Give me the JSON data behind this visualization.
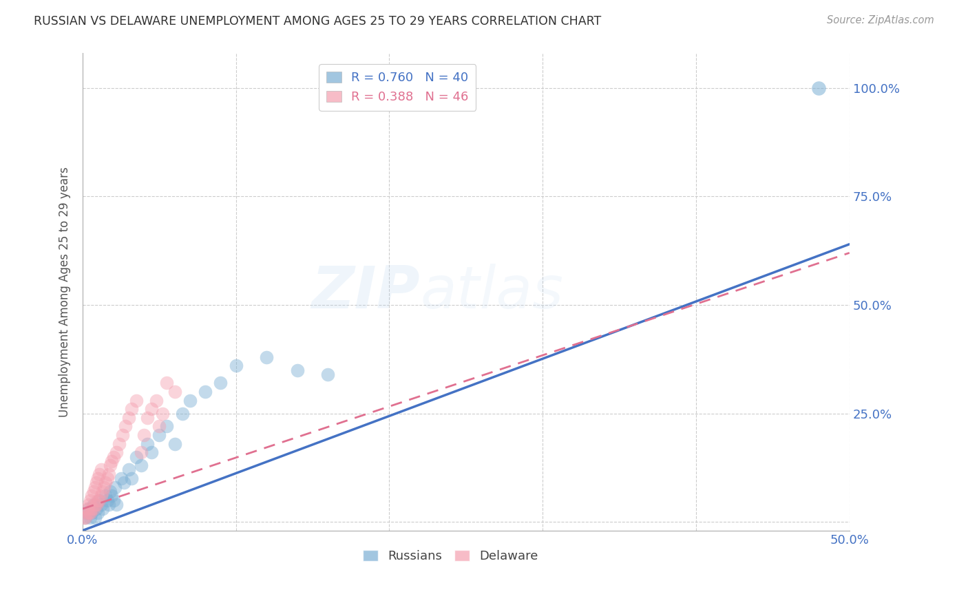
{
  "title": "RUSSIAN VS DELAWARE UNEMPLOYMENT AMONG AGES 25 TO 29 YEARS CORRELATION CHART",
  "source": "Source: ZipAtlas.com",
  "ylabel": "Unemployment Among Ages 25 to 29 years",
  "xlim": [
    0.0,
    0.5
  ],
  "ylim": [
    -0.02,
    1.08
  ],
  "x_ticks": [
    0.0,
    0.1,
    0.2,
    0.3,
    0.4,
    0.5
  ],
  "x_tick_labels": [
    "0.0%",
    "",
    "",
    "",
    "",
    "50.0%"
  ],
  "y_ticks": [
    0.0,
    0.25,
    0.5,
    0.75,
    1.0
  ],
  "y_tick_labels": [
    "",
    "25.0%",
    "50.0%",
    "75.0%",
    "100.0%"
  ],
  "blue_color": "#7BAFD4",
  "pink_color": "#F4A0B0",
  "blue_line_color": "#4472C4",
  "pink_line_color": "#E07090",
  "grid_color": "#CCCCCC",
  "title_color": "#333333",
  "axis_label_color": "#4472C4",
  "legend_blue_R": "0.760",
  "legend_blue_N": "40",
  "legend_pink_R": "0.388",
  "legend_pink_N": "46",
  "legend_label_blue": "Russians",
  "legend_label_pink": "Delaware",
  "watermark_zip": "ZIP",
  "watermark_atlas": "atlas",
  "russians_x": [
    0.002,
    0.003,
    0.004,
    0.005,
    0.006,
    0.007,
    0.008,
    0.009,
    0.01,
    0.011,
    0.012,
    0.013,
    0.015,
    0.016,
    0.017,
    0.018,
    0.019,
    0.02,
    0.021,
    0.022,
    0.025,
    0.027,
    0.03,
    0.032,
    0.035,
    0.038,
    0.042,
    0.045,
    0.05,
    0.055,
    0.06,
    0.065,
    0.07,
    0.08,
    0.09,
    0.1,
    0.12,
    0.14,
    0.16,
    0.48
  ],
  "russians_y": [
    0.01,
    0.02,
    0.03,
    0.01,
    0.02,
    0.04,
    0.01,
    0.03,
    0.02,
    0.05,
    0.04,
    0.03,
    0.06,
    0.05,
    0.04,
    0.07,
    0.06,
    0.05,
    0.08,
    0.04,
    0.1,
    0.09,
    0.12,
    0.1,
    0.15,
    0.13,
    0.18,
    0.16,
    0.2,
    0.22,
    0.18,
    0.25,
    0.28,
    0.3,
    0.32,
    0.36,
    0.38,
    0.35,
    0.34,
    1.0
  ],
  "delaware_x": [
    0.001,
    0.002,
    0.003,
    0.003,
    0.004,
    0.004,
    0.005,
    0.005,
    0.006,
    0.006,
    0.007,
    0.007,
    0.008,
    0.008,
    0.009,
    0.009,
    0.01,
    0.01,
    0.011,
    0.011,
    0.012,
    0.012,
    0.013,
    0.014,
    0.015,
    0.016,
    0.017,
    0.018,
    0.019,
    0.02,
    0.022,
    0.024,
    0.026,
    0.028,
    0.03,
    0.032,
    0.035,
    0.038,
    0.04,
    0.042,
    0.045,
    0.048,
    0.05,
    0.052,
    0.055,
    0.06
  ],
  "delaware_y": [
    0.01,
    0.01,
    0.02,
    0.03,
    0.02,
    0.04,
    0.02,
    0.05,
    0.03,
    0.06,
    0.03,
    0.07,
    0.04,
    0.08,
    0.04,
    0.09,
    0.05,
    0.1,
    0.05,
    0.11,
    0.06,
    0.12,
    0.07,
    0.08,
    0.09,
    0.1,
    0.11,
    0.13,
    0.14,
    0.15,
    0.16,
    0.18,
    0.2,
    0.22,
    0.24,
    0.26,
    0.28,
    0.16,
    0.2,
    0.24,
    0.26,
    0.28,
    0.22,
    0.25,
    0.32,
    0.3
  ],
  "blue_trendline_x": [
    0.0,
    0.5
  ],
  "blue_trendline_y": [
    -0.02,
    0.64
  ],
  "pink_trendline_x": [
    0.0,
    0.5
  ],
  "pink_trendline_y": [
    0.03,
    0.62
  ]
}
